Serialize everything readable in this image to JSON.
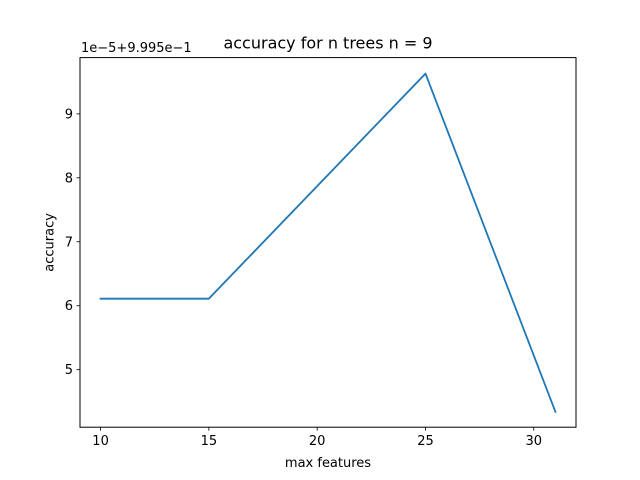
{
  "chart_data": {
    "type": "line",
    "title": "accuracy for n trees n = 9",
    "xlabel": "max features",
    "ylabel": "accuracy",
    "offset_label": "1e−5+9.995e−1",
    "x": [
      10,
      15,
      20,
      25,
      31
    ],
    "series": [
      {
        "name": "accuracy",
        "color": "#1f77b4",
        "values": [
          6.11,
          6.11,
          7.87,
          9.63,
          4.34
        ]
      }
    ],
    "xlim": [
      9.05,
      31.95
    ],
    "ylim": [
      4.1,
      9.88
    ],
    "xticks": [
      10,
      15,
      20,
      25,
      30
    ],
    "xtick_labels": [
      "10",
      "15",
      "20",
      "25",
      "30"
    ],
    "yticks": [
      5,
      6,
      7,
      8,
      9
    ],
    "ytick_labels": [
      "5",
      "6",
      "7",
      "8",
      "9"
    ],
    "grid": false,
    "legend": "none"
  }
}
